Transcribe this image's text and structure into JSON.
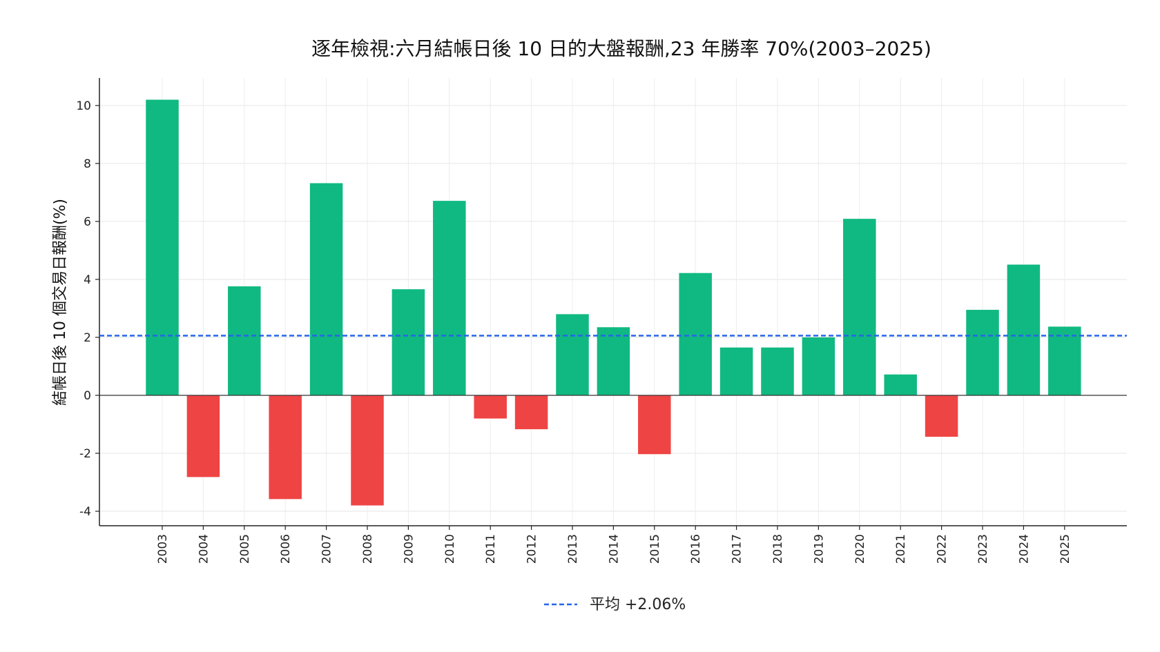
{
  "chart_data": {
    "type": "bar",
    "title": "逐年檢視:六月結帳日後 10 日的大盤報酬,23 年勝率 70%(2003–2025)",
    "xlabel": "",
    "ylabel": "結帳日後 10 個交易日報酬(%)",
    "categories": [
      "2003",
      "2004",
      "2005",
      "2006",
      "2007",
      "2008",
      "2009",
      "2010",
      "2011",
      "2012",
      "2013",
      "2014",
      "2015",
      "2016",
      "2017",
      "2018",
      "2019",
      "2020",
      "2021",
      "2022",
      "2023",
      "2024",
      "2025"
    ],
    "values": [
      10.2,
      -2.82,
      3.76,
      -3.58,
      7.32,
      -3.8,
      3.66,
      6.71,
      -0.8,
      -1.17,
      2.8,
      2.35,
      -2.03,
      4.22,
      1.65,
      1.65,
      2.0,
      6.09,
      0.72,
      -1.43,
      2.95,
      4.51,
      2.37
    ],
    "ylim": [
      -4.5,
      10.95
    ],
    "yticks": [
      -4,
      -2,
      0,
      2,
      4,
      6,
      8,
      10
    ],
    "ytick_labels": [
      "-4",
      "-2",
      "0",
      "2",
      "4",
      "6",
      "8",
      "10"
    ],
    "mean": 2.06,
    "mean_label": "平均 +2.06%",
    "colors": {
      "positive": "#10b981",
      "negative": "#ef4444",
      "mean_line": "#2563eb"
    },
    "grid": true,
    "legend_position": "bottom-center"
  }
}
